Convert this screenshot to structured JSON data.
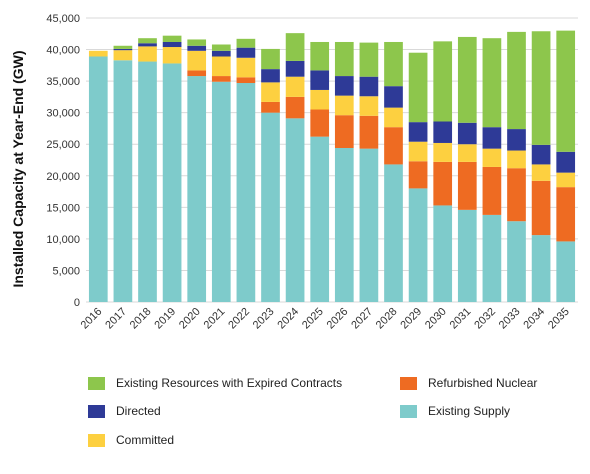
{
  "chart_data": {
    "type": "bar",
    "stacked": true,
    "ylabel": "Installed Capacity at Year-End (GW)",
    "ylim": [
      0,
      45000
    ],
    "yticks": [
      0,
      5000,
      10000,
      15000,
      20000,
      25000,
      30000,
      35000,
      40000,
      45000
    ],
    "ytick_labels": [
      "0",
      "5,000",
      "10,000",
      "15,000",
      "20,000",
      "25,000",
      "30,000",
      "35,000",
      "40,000",
      "45,000"
    ],
    "grid": true,
    "legend_position": "bottom",
    "categories": [
      "2016",
      "2017",
      "2018",
      "2019",
      "2020",
      "2021",
      "2022",
      "2023",
      "2024",
      "2025",
      "2026",
      "2027",
      "2028",
      "2029",
      "2030",
      "2031",
      "2032",
      "2033",
      "2034",
      "2035"
    ],
    "series": [
      {
        "name": "Existing Supply",
        "color": "#7ecbcb",
        "values": [
          38900,
          38300,
          38100,
          37800,
          35800,
          34900,
          34700,
          30000,
          29100,
          26200,
          24400,
          24300,
          21800,
          18000,
          15300,
          14600,
          13800,
          12800,
          10600,
          9600
        ]
      },
      {
        "name": "Refurbished Nuclear",
        "color": "#ee6b22",
        "values": [
          0,
          0,
          0,
          0,
          900,
          900,
          900,
          1700,
          3400,
          4300,
          5200,
          5200,
          5900,
          4300,
          6900,
          7600,
          7600,
          8400,
          8600,
          8600
        ]
      },
      {
        "name": "Committed",
        "color": "#fdd040",
        "values": [
          900,
          1600,
          2400,
          2600,
          3100,
          3100,
          3100,
          3100,
          3200,
          3100,
          3100,
          3100,
          3100,
          3100,
          3000,
          2800,
          2900,
          2800,
          2600,
          2300
        ]
      },
      {
        "name": "Directed",
        "color": "#2e3a97",
        "values": [
          0,
          200,
          500,
          800,
          800,
          900,
          1600,
          2100,
          2500,
          3100,
          3100,
          3100,
          3400,
          3100,
          3400,
          3400,
          3400,
          3400,
          3100,
          3300
        ]
      },
      {
        "name": "Existing Resources with Expired Contracts",
        "color": "#8dc64c",
        "values": [
          0,
          500,
          800,
          1000,
          1000,
          1000,
          1400,
          3200,
          4400,
          4500,
          5400,
          5400,
          7000,
          11000,
          12700,
          13600,
          14100,
          15400,
          18000,
          19200
        ]
      }
    ]
  },
  "legend": {
    "items": [
      {
        "label": "Existing Resources with Expired Contracts",
        "color": "#8dc64c"
      },
      {
        "label": "Refurbished Nuclear",
        "color": "#ee6b22"
      },
      {
        "label": "Directed",
        "color": "#2e3a97"
      },
      {
        "label": "Existing Supply",
        "color": "#7ecbcb"
      },
      {
        "label": "Committed",
        "color": "#fdd040"
      }
    ]
  }
}
